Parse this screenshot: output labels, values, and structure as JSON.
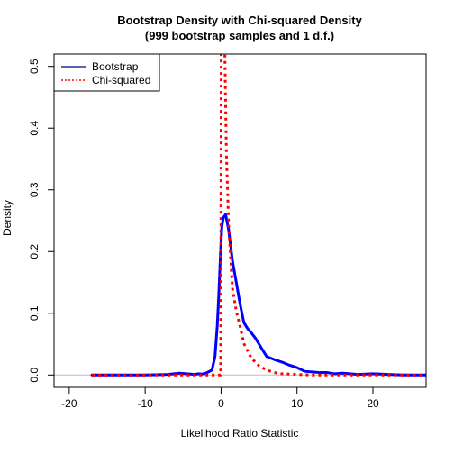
{
  "chart_data": {
    "type": "line",
    "title": "Bootstrap Density with Chi-squared Density",
    "subtitle": "(999 bootstrap samples and 1 d.f.)",
    "xlabel": "Likelihood Ratio Statistic",
    "ylabel": "Density",
    "xlim": [
      -22,
      27
    ],
    "ylim": [
      -0.02,
      0.52
    ],
    "x_ticks": [
      -20,
      -10,
      0,
      10,
      20
    ],
    "y_ticks": [
      0.0,
      0.1,
      0.2,
      0.3,
      0.4,
      0.5
    ],
    "x_tick_labels": [
      "-20",
      "-10",
      "0",
      "10",
      "20"
    ],
    "y_tick_labels": [
      "0.0",
      "0.1",
      "0.2",
      "0.3",
      "0.4",
      "0.5"
    ],
    "reference_line_y": 0,
    "legend": {
      "position": "top-left",
      "entries": [
        "Bootstrap",
        "Chi-squared"
      ]
    },
    "series": [
      {
        "name": "Bootstrap",
        "color": "#0000ff",
        "style": "solid",
        "x": [
          -17,
          -10,
          -7,
          -5.5,
          -4.5,
          -3.5,
          -3,
          -2.5,
          -2,
          -1.2,
          -0.8,
          -0.5,
          -0.3,
          -0.1,
          0.1,
          0.3,
          0.6,
          1.0,
          1.5,
          2.0,
          2.5,
          3.0,
          3.5,
          4.0,
          4.5,
          5.0,
          6.0,
          7.0,
          8.0,
          9.0,
          10.0,
          11.0,
          12.0,
          13.0,
          14.0,
          15.0,
          16.0,
          18.0,
          20.0,
          22.0,
          24.0,
          27.0
        ],
        "y": [
          0.0,
          0.0,
          0.001,
          0.003,
          0.002,
          0.001,
          0.002,
          0.0015,
          0.003,
          0.008,
          0.03,
          0.08,
          0.13,
          0.19,
          0.24,
          0.255,
          0.26,
          0.235,
          0.185,
          0.15,
          0.115,
          0.085,
          0.075,
          0.068,
          0.06,
          0.05,
          0.03,
          0.025,
          0.021,
          0.016,
          0.012,
          0.006,
          0.005,
          0.004,
          0.004,
          0.002,
          0.003,
          0.001,
          0.002,
          0.001,
          0.0,
          0.0
        ]
      },
      {
        "name": "Chi-squared",
        "color": "#ff0000",
        "style": "dotted",
        "x": [
          -17,
          -5,
          -1,
          -0.2,
          -0.05,
          0.02,
          0.05,
          0.1,
          0.2,
          0.3,
          0.5,
          0.7,
          1.0,
          1.5,
          2.0,
          2.5,
          3.0,
          4.0,
          5.0,
          6.0,
          7.0,
          8.0,
          10.0,
          12.0,
          27.0
        ],
        "y": [
          0.0,
          0.0,
          0.0,
          0.0,
          0.0,
          0.52,
          0.52,
          0.52,
          0.52,
          0.52,
          0.52,
          0.36,
          0.242,
          0.14,
          0.104,
          0.079,
          0.051,
          0.027,
          0.015,
          0.008,
          0.004,
          0.002,
          0.001,
          0.0,
          0.0
        ]
      }
    ]
  }
}
